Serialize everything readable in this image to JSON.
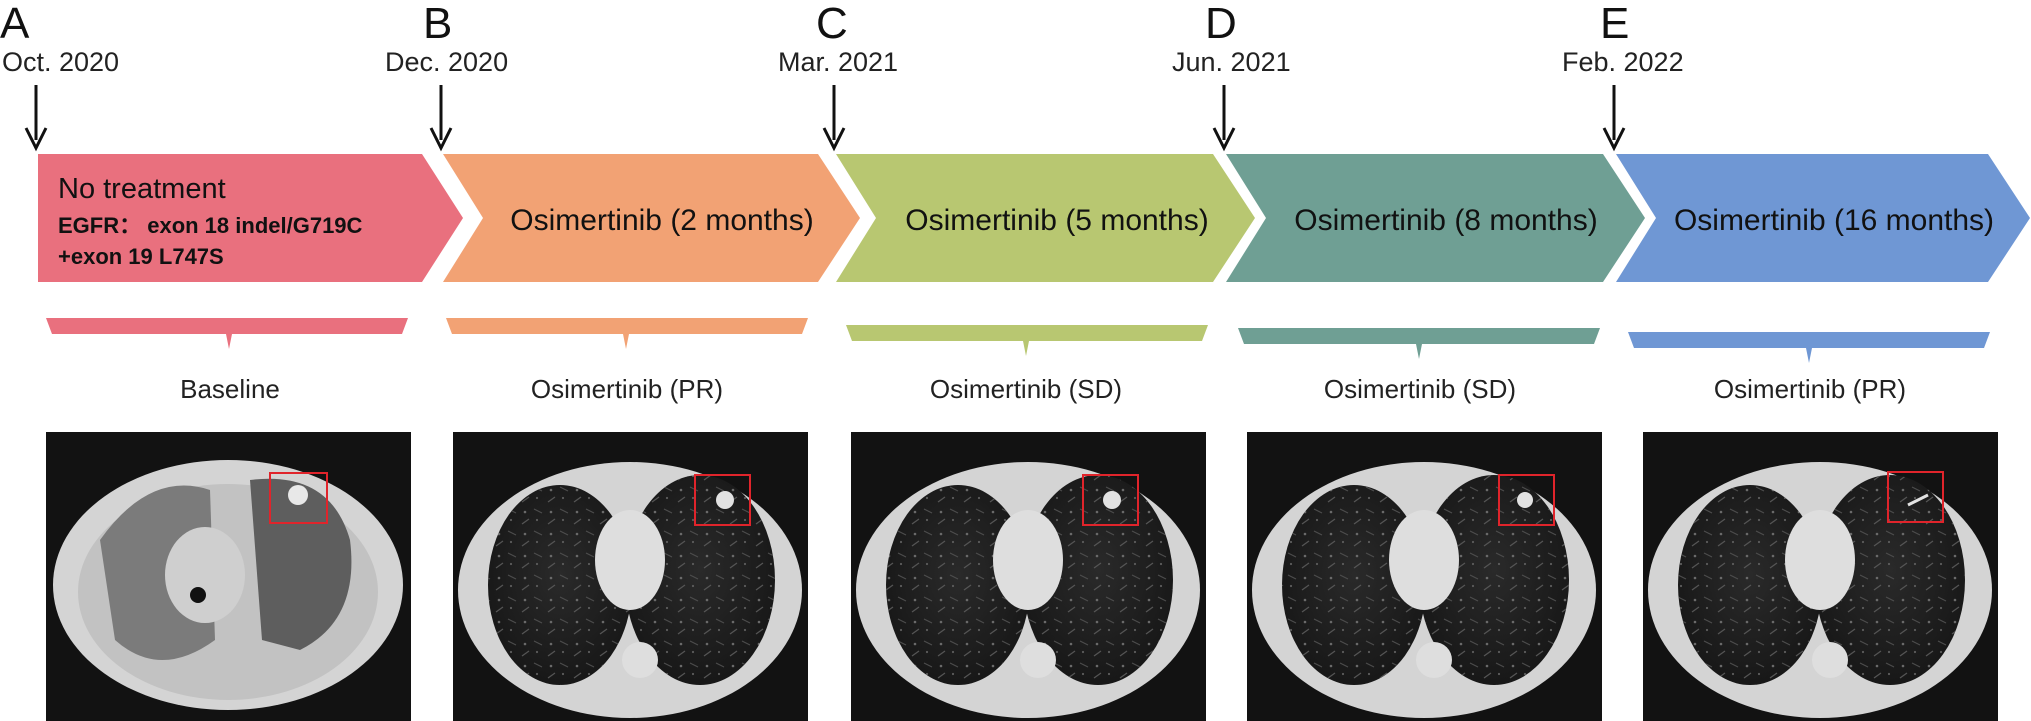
{
  "colors": {
    "stage_a": "#e9707e",
    "stage_b": "#f2a274",
    "stage_c": "#b8c771",
    "stage_d": "#6f9f94",
    "stage_e": "#6f97d4",
    "roi_box": "#e0242b"
  },
  "stages": [
    {
      "letter": "A",
      "date": "Oct. 2020",
      "treatment": "No treatment",
      "mutation_line1": "EGFR：  exon 18 indel/G719C",
      "mutation_line2": "+exon 19 L747S",
      "response": "Baseline"
    },
    {
      "letter": "B",
      "date": "Dec. 2020",
      "treatment": "Osimertinib (2 months)",
      "response": "Osimertinib (PR)"
    },
    {
      "letter": "C",
      "date": "Mar. 2021",
      "treatment": "Osimertinib (5 months)",
      "response": "Osimertinib (SD)"
    },
    {
      "letter": "D",
      "date": "Jun. 2021",
      "treatment": "Osimertinib (8 months)",
      "response": "Osimertinib (SD)"
    },
    {
      "letter": "E",
      "date": "Feb. 2022",
      "treatment": "Osimertinib (16 months)",
      "response": "Osimertinib (PR)"
    }
  ]
}
